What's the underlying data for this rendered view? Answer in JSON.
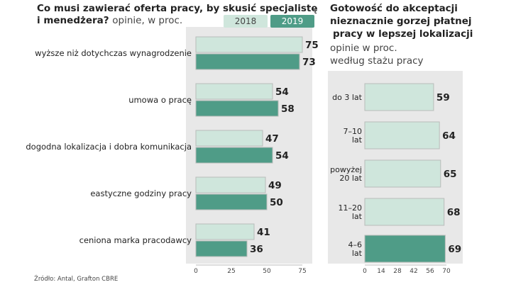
{
  "colors": {
    "series_2018": "#cfe6dc",
    "series_2019": "#4f9c87",
    "panel_bg": "#e8e8e8",
    "bar_outline": "#b9bcba"
  },
  "left": {
    "title_line1": "Co musi zawierać oferta pracy, by skusić specjalistę",
    "title_line2_bold": "i menedżera?",
    "title_line2_rest": "opinie, w proc."
  },
  "right": {
    "title_line1": "Gotowość do akceptacji",
    "title_line2": "nieznacznie gorzej płatnej",
    "title_line3": "pracy w lepszej lokalizacji",
    "subtitle_line1": "opinie w proc.",
    "subtitle_line2": "według stażu pracy"
  },
  "source": "Źródło: Antal, Grafton CBRE",
  "chart_data": [
    {
      "type": "bar",
      "orientation": "horizontal",
      "categories": [
        "wyższe niż dotychczas wynagrodzenie",
        "umowa o pracę",
        "dogodna lokalizacja i dobra komunikacja",
        "eastyczne godziny pracy",
        "ceniona marka pracodawcy"
      ],
      "series": [
        {
          "name": "2018",
          "values": [
            75,
            54,
            47,
            49,
            41
          ]
        },
        {
          "name": "2019",
          "values": [
            73,
            58,
            54,
            50,
            36
          ]
        }
      ],
      "xlim": [
        0,
        75
      ],
      "xticks": [
        "0",
        "25",
        "50",
        "75"
      ],
      "legend": [
        "2018",
        "2019"
      ],
      "legend_position": "top-right"
    },
    {
      "type": "bar",
      "orientation": "horizontal",
      "categories": [
        [
          "do 3 lat"
        ],
        [
          "7–10",
          "lat"
        ],
        [
          "powyżej",
          "20 lat"
        ],
        [
          "11–20",
          "lat"
        ],
        [
          "4–6",
          "lat"
        ]
      ],
      "values": [
        59,
        64,
        65,
        68,
        69
      ],
      "highlight_index": 4,
      "xlim": [
        0,
        70
      ],
      "xticks": [
        "0",
        "14",
        "28",
        "42",
        "56",
        "70"
      ]
    }
  ]
}
